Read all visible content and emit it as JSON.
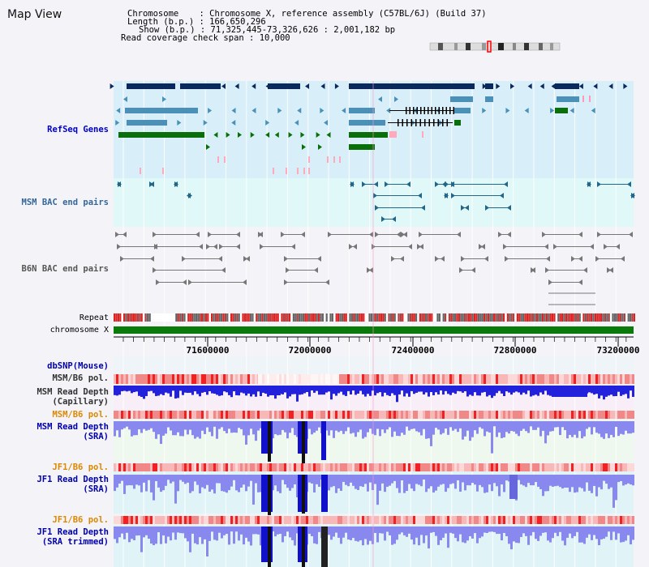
{
  "title": "Map View",
  "info": {
    "chromosome_label": "Chromosome",
    "chromosome_value": ": Chromosome X, reference assembly (C57BL/6J) (Build 37)",
    "length_label": "Length (b.p.)",
    "length_value": ": 166,650,296",
    "show_label": "Show (b.p.)",
    "show_value": ": 71,325,445-73,326,626 : 2,001,182 bp",
    "coverage_label": "Read coverage check span",
    "coverage_value": ": 10,000"
  },
  "tracks": {
    "refseq": {
      "label": "RefSeq Genes",
      "color": "#0000cc"
    },
    "msm_bac": {
      "label": "MSM BAC end pairs",
      "color": "#336699"
    },
    "b6n_bac": {
      "label": "B6N BAC end pairs",
      "color": "#555555"
    },
    "repeat": {
      "label": "Repeat"
    },
    "chromosome": {
      "label": "chromosome X"
    },
    "dbsnp": {
      "label": "dbSNP(Mouse)",
      "color": "#0000aa"
    },
    "msm_b6_pol_cap": {
      "label": "MSM/B6 pol.",
      "color": "#333333"
    },
    "msm_depth_cap": {
      "line1": "MSM Read Depth",
      "line2": "(Capillary)",
      "color": "#333333"
    },
    "msm_b6_pol_sra": {
      "label": "MSM/B6 pol.",
      "color": "#dd8800"
    },
    "msm_depth_sra": {
      "line1": "MSM Read Depth",
      "line2": "(SRA)",
      "color": "#0000aa"
    },
    "jf1_b6_pol_1": {
      "label": "JF1/B6 pol.",
      "color": "#dd8800"
    },
    "jf1_depth_sra": {
      "line1": "JF1 Read Depth",
      "line2": "(SRA)",
      "color": "#0000aa"
    },
    "jf1_b6_pol_2": {
      "label": "JF1/B6 pol.",
      "color": "#dd8800"
    },
    "jf1_depth_trim": {
      "line1": "JF1 Read Depth",
      "line2": "(SRA trimmed)",
      "color": "#0000aa"
    }
  },
  "axis": {
    "ticks": [
      "71600000",
      "72000000",
      "72400000",
      "72800000",
      "73200000"
    ]
  },
  "colors": {
    "refseq_bg": "#d8eef8",
    "msm_bg": "#e0f8f8",
    "b6n_bg": "#f4f4f8",
    "gene_dark": "#0a2a5e",
    "gene_mid": "#4a90b8",
    "gene_green": "#0a6e0a",
    "chrom_green": "#0a7a0a",
    "depth_fill": "#8888ee",
    "depth_strong": "#1111cc",
    "pol_red": "#ee3333"
  }
}
